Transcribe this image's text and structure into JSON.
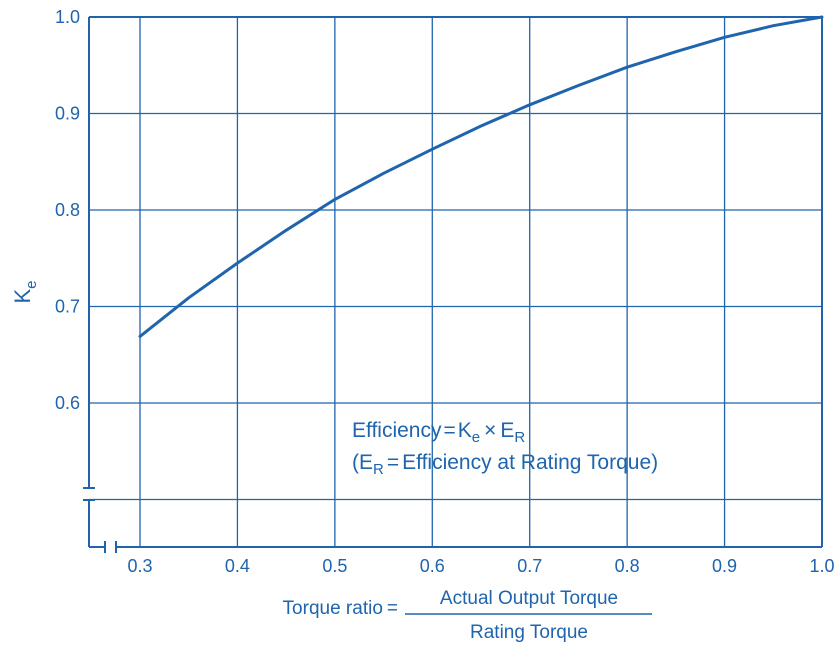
{
  "colors": {
    "ink": "#1f64ad",
    "background": "#ffffff"
  },
  "chart_data": {
    "type": "line",
    "ylabel": "K",
    "ylabel_sub": "e",
    "x_ticks": [
      "0.3",
      "0.4",
      "0.5",
      "0.6",
      "0.7",
      "0.8",
      "0.9",
      "1.0"
    ],
    "y_ticks": [
      "0.6",
      "0.7",
      "0.8",
      "0.9",
      "1.0"
    ],
    "xlim": [
      0.3,
      1.0
    ],
    "ylim": [
      0.6,
      1.0
    ],
    "axis_breaks": true,
    "grid": true,
    "series": [
      {
        "x": [
          0.3,
          0.35,
          0.4,
          0.45,
          0.5,
          0.55,
          0.6,
          0.65,
          0.7,
          0.75,
          0.8,
          0.85,
          0.9,
          0.95,
          1.0
        ],
        "y": [
          0.669,
          0.709,
          0.745,
          0.779,
          0.811,
          0.838,
          0.863,
          0.887,
          0.909,
          0.929,
          0.948,
          0.964,
          0.979,
          0.991,
          1.0
        ]
      }
    ],
    "annotation": {
      "line1": {
        "a": "Efficiency",
        "eq": "=",
        "b": "K",
        "b_sub": "e",
        "times": "×",
        "c": "E",
        "c_sub": "R"
      },
      "line2": {
        "open": "(E",
        "open_sub": "R",
        "eq": "=",
        "rest": "Efficiency at Rating Torque)"
      }
    },
    "xlabel": {
      "prefix": "Torque ratio",
      "eq": "=",
      "numerator": "Actual Output Torque",
      "denominator": "Rating Torque"
    }
  }
}
